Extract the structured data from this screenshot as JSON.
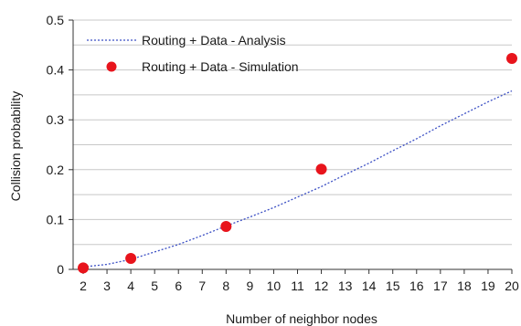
{
  "chart_data": {
    "type": "line",
    "xlabel": "Number of neighbor nodes",
    "ylabel": "Collision probability",
    "xlim": [
      2,
      20
    ],
    "ylim": [
      0,
      0.5
    ],
    "x_ticks": [
      "2",
      "3",
      "4",
      "5",
      "6",
      "7",
      "8",
      "9",
      "10",
      "11",
      "12",
      "13",
      "14",
      "15",
      "16",
      "17",
      "18",
      "19",
      "20"
    ],
    "y_ticks": [
      "0",
      "0.1",
      "0.2",
      "0.3",
      "0.4",
      "0.5"
    ],
    "grid": "horizontal",
    "legend_position": "top-left",
    "series": [
      {
        "name": "Routing + Data - Analysis",
        "style": "dotted-line",
        "color": "#3b4fc4",
        "x": [
          2,
          3,
          4,
          5,
          6,
          7,
          8,
          9,
          10,
          11,
          12,
          13,
          14,
          15,
          16,
          17,
          18,
          19,
          20
        ],
        "y": [
          0.005,
          0.01,
          0.02,
          0.035,
          0.05,
          0.068,
          0.087,
          0.105,
          0.124,
          0.145,
          0.166,
          0.19,
          0.213,
          0.238,
          0.262,
          0.288,
          0.312,
          0.336,
          0.358
        ]
      },
      {
        "name": "Routing + Data - Simulation",
        "style": "marker",
        "color": "#e8141c",
        "x": [
          2,
          4,
          8,
          12,
          20
        ],
        "y": [
          0.003,
          0.022,
          0.086,
          0.201,
          0.423
        ]
      }
    ]
  }
}
